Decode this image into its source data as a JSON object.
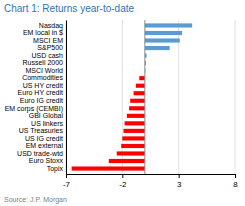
{
  "chart_data": {
    "type": "bar",
    "orientation": "horizontal",
    "title": "Chart 1: Returns year-to-date",
    "annotations": [
      "Source: J.P. Morgan"
    ],
    "categories": [
      "Nasdaq",
      "EM local in $",
      "MSCI EM",
      "S&P500",
      "USD cash",
      "Russell 2000",
      "MSCI World",
      "Commodities",
      "US HY credit",
      "Euro HY credit",
      "Euro IG credit",
      "EM corps (CEMBI)",
      "GBI Global",
      "US linkers",
      "US Treasuries",
      "US IG credit",
      "EM external",
      "USD trade-wtd",
      "Euro Stoxx",
      "Topix"
    ],
    "values": [
      4.2,
      3.3,
      3.1,
      2.2,
      0.15,
      0.1,
      0.05,
      -0.5,
      -0.8,
      -1.0,
      -1.3,
      -1.4,
      -1.6,
      -1.8,
      -1.9,
      -2.0,
      -2.1,
      -2.5,
      -3.2,
      -6.5
    ],
    "colors": [
      "#5b9bd5",
      "#5b9bd5",
      "#5b9bd5",
      "#5b9bd5",
      "#5b9bd5",
      "#5b9bd5",
      "#5b9bd5",
      "#ff0000",
      "#ff0000",
      "#ff0000",
      "#ff0000",
      "#ff0000",
      "#ff0000",
      "#ff0000",
      "#ff0000",
      "#ff0000",
      "#ff0000",
      "#ff0000",
      "#ff0000",
      "#ff0000"
    ],
    "xlim": [
      -7,
      8
    ],
    "xticks": [
      -7,
      -2,
      3,
      8
    ],
    "grid": true
  }
}
